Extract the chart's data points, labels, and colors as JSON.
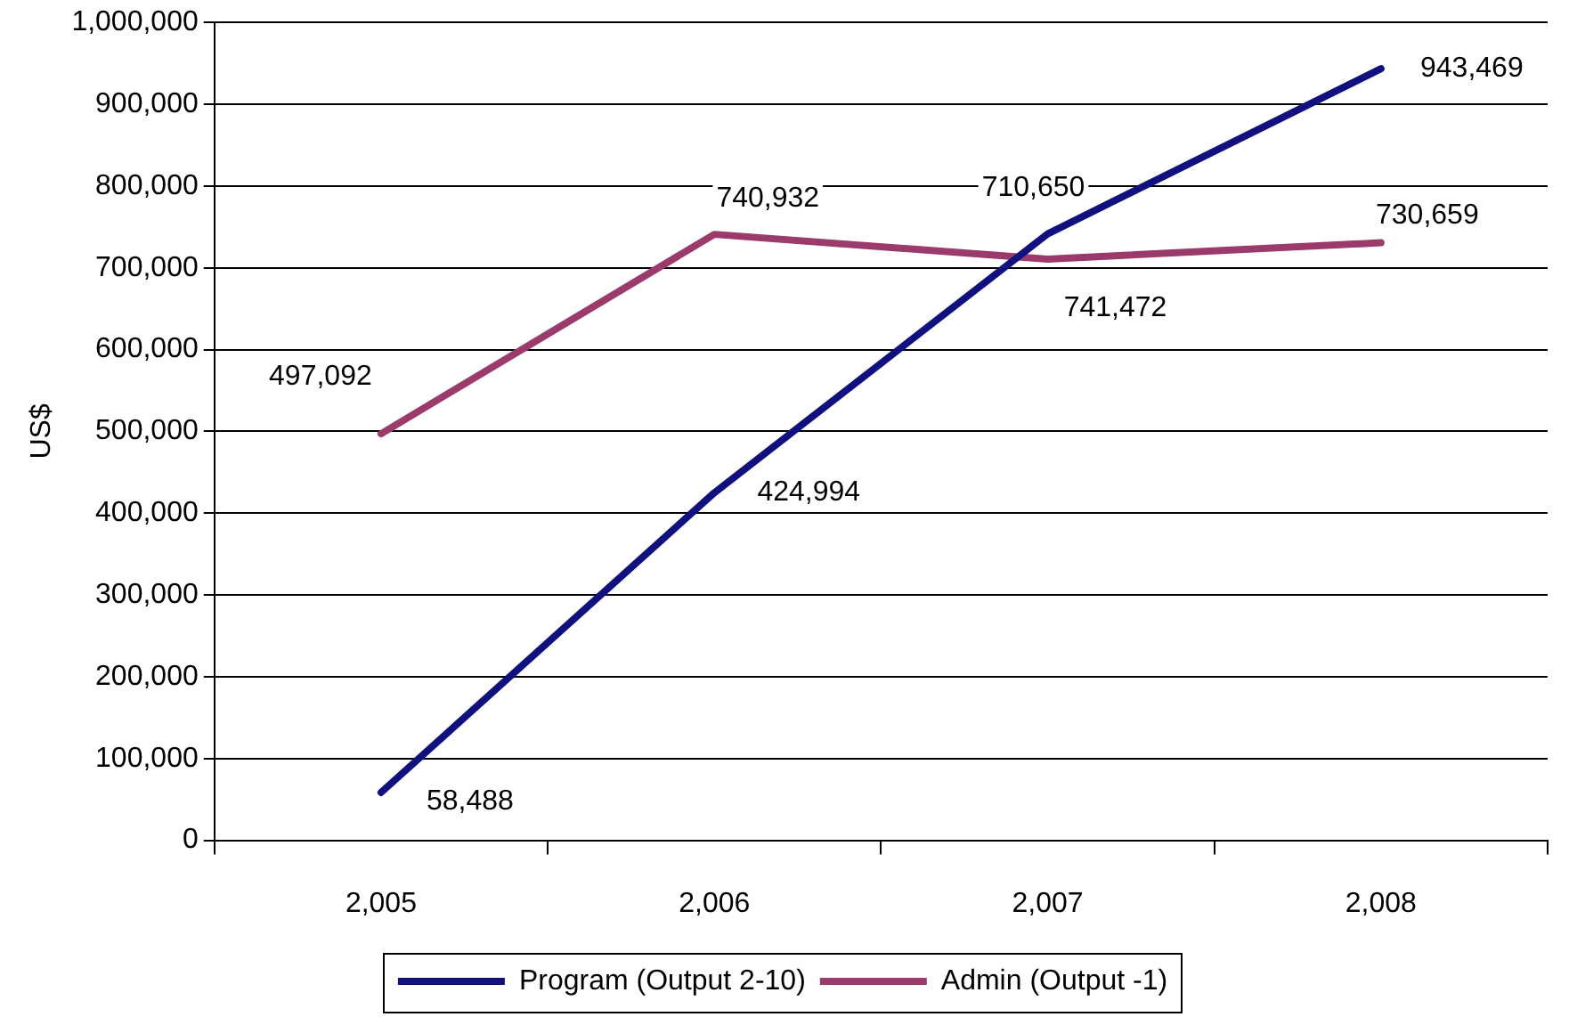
{
  "chart_data": {
    "type": "line",
    "ylabel": "US$",
    "categories": [
      "2,005",
      "2,006",
      "2,007",
      "2,008"
    ],
    "series": [
      {
        "name": "Program (Output 2-10)",
        "color": "#10107f",
        "values": [
          58488,
          424994,
          741472,
          943469
        ],
        "value_labels": [
          "58,488",
          "424,994",
          "741,472",
          "943,469"
        ]
      },
      {
        "name": "Admin (Output -1)",
        "color": "#9b3b6b",
        "values": [
          497092,
          740932,
          710650,
          730659
        ],
        "value_labels": [
          "497,092",
          "740,932",
          "710,650",
          "730,659"
        ]
      }
    ],
    "ylim": [
      0,
      1000000
    ],
    "yticks": [
      {
        "value": 0,
        "label": "0"
      },
      {
        "value": 100000,
        "label": "100,000"
      },
      {
        "value": 200000,
        "label": "200,000"
      },
      {
        "value": 300000,
        "label": "300,000"
      },
      {
        "value": 400000,
        "label": "400,000"
      },
      {
        "value": 500000,
        "label": "500,000"
      },
      {
        "value": 600000,
        "label": "600,000"
      },
      {
        "value": 700000,
        "label": "700,000"
      },
      {
        "value": 800000,
        "label": "800,000"
      },
      {
        "value": 900000,
        "label": "900,000"
      },
      {
        "value": 1000000,
        "label": "1,000,000"
      }
    ],
    "grid": "y",
    "legend": "bottom",
    "marker": "none",
    "line_style": "solid"
  }
}
